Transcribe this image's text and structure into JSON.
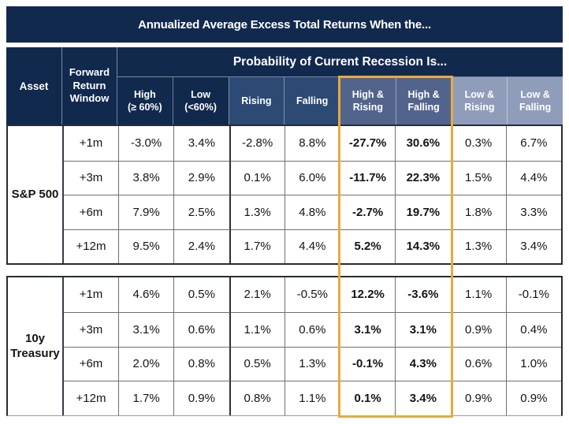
{
  "chart_data": {
    "type": "table",
    "title": "Annualized Average Excess Total Returns When the...",
    "group_header": "Probability of Current Recession Is...",
    "asset_header": "Asset",
    "window_header": "Forward Return Window",
    "columns": [
      {
        "line1": "High",
        "line2": "(≥ 60%)"
      },
      {
        "line1": "Low",
        "line2": "(<60%)"
      },
      {
        "line1": "Rising",
        "line2": ""
      },
      {
        "line1": "Falling",
        "line2": ""
      },
      {
        "line1": "High &",
        "line2": "Rising"
      },
      {
        "line1": "High &",
        "line2": "Falling"
      },
      {
        "line1": "Low &",
        "line2": "Rising"
      },
      {
        "line1": "Low &",
        "line2": "Falling"
      }
    ],
    "highlighted_columns": [
      "High & Rising",
      "High & Falling"
    ],
    "blocks": [
      {
        "asset": "S&P 500",
        "rows": [
          {
            "window": "+1m",
            "values": [
              "-3.0%",
              "3.4%",
              "-2.8%",
              "8.8%",
              "-27.7%",
              "30.6%",
              "0.3%",
              "6.7%"
            ]
          },
          {
            "window": "+3m",
            "values": [
              "3.8%",
              "2.9%",
              "0.1%",
              "6.0%",
              "-11.7%",
              "22.3%",
              "1.5%",
              "4.4%"
            ]
          },
          {
            "window": "+6m",
            "values": [
              "7.9%",
              "2.5%",
              "1.3%",
              "4.8%",
              "-2.7%",
              "19.7%",
              "1.8%",
              "3.3%"
            ]
          },
          {
            "window": "+12m",
            "values": [
              "9.5%",
              "2.4%",
              "1.7%",
              "4.4%",
              "5.2%",
              "14.3%",
              "1.3%",
              "3.4%"
            ]
          }
        ]
      },
      {
        "asset": "10y Treasury",
        "rows": [
          {
            "window": "+1m",
            "values": [
              "4.6%",
              "0.5%",
              "2.1%",
              "-0.5%",
              "12.2%",
              "-3.6%",
              "1.1%",
              "-0.1%"
            ]
          },
          {
            "window": "+3m",
            "values": [
              "3.1%",
              "0.6%",
              "1.1%",
              "0.6%",
              "3.1%",
              "3.1%",
              "0.9%",
              "0.4%"
            ]
          },
          {
            "window": "+6m",
            "values": [
              "2.0%",
              "0.8%",
              "0.5%",
              "1.3%",
              "-0.1%",
              "4.3%",
              "0.6%",
              "1.0%"
            ]
          },
          {
            "window": "+12m",
            "values": [
              "1.7%",
              "0.9%",
              "0.8%",
              "1.1%",
              "0.1%",
              "3.4%",
              "0.9%",
              "0.9%"
            ]
          }
        ]
      }
    ]
  },
  "colors": {
    "navy": "#12294e",
    "medium_blue": "#2c4a74",
    "slate_blue": "#53648c",
    "light_blue": "#8f9dba",
    "highlight_orange": "#e9aa3c"
  }
}
